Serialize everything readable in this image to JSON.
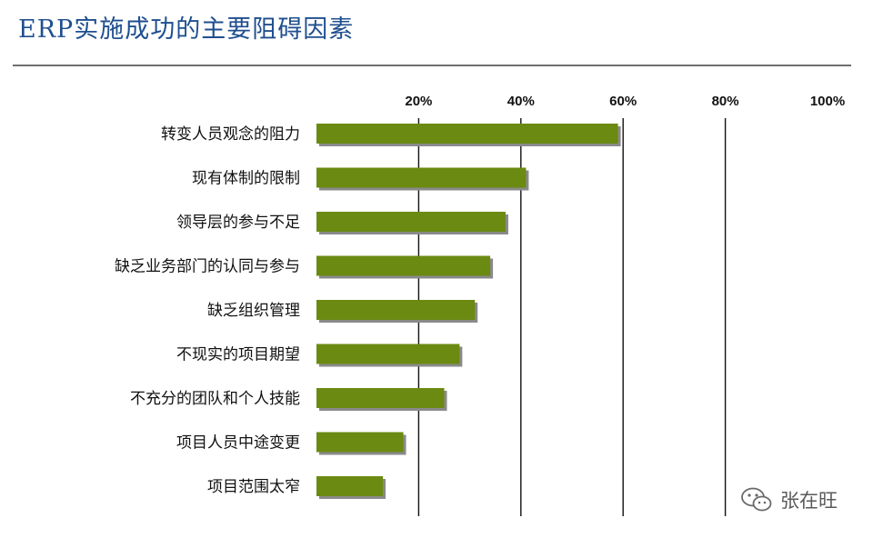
{
  "title": "ERP实施成功的主要阻碍因素",
  "watermark": {
    "icon": "wechat-icon",
    "text": "张在旺"
  },
  "colors": {
    "bar": "#6b8a12",
    "bar_shadow": "#8a8a8a",
    "gridline": "#111111",
    "title": "#1f4f8f"
  },
  "chart_data": {
    "type": "bar",
    "orientation": "horizontal",
    "title": "ERP实施成功的主要阻碍因素",
    "xlabel": "",
    "ylabel": "",
    "xlim": [
      0,
      100
    ],
    "tick_labels": [
      "20%",
      "40%",
      "60%",
      "80%",
      "100%"
    ],
    "ticks": [
      20,
      40,
      60,
      80,
      100
    ],
    "grid": true,
    "categories": [
      "转变人员观念的阻力",
      "现有体制的限制",
      "领导层的参与不足",
      "缺乏业务部门的认同与参与",
      "缺乏组织管理",
      "不现实的项目期望",
      "不充分的团队和个人技能",
      "项目人员中途变更",
      "项目范围太窄"
    ],
    "values": [
      59,
      41,
      37,
      34,
      31,
      28,
      25,
      17,
      13
    ]
  }
}
